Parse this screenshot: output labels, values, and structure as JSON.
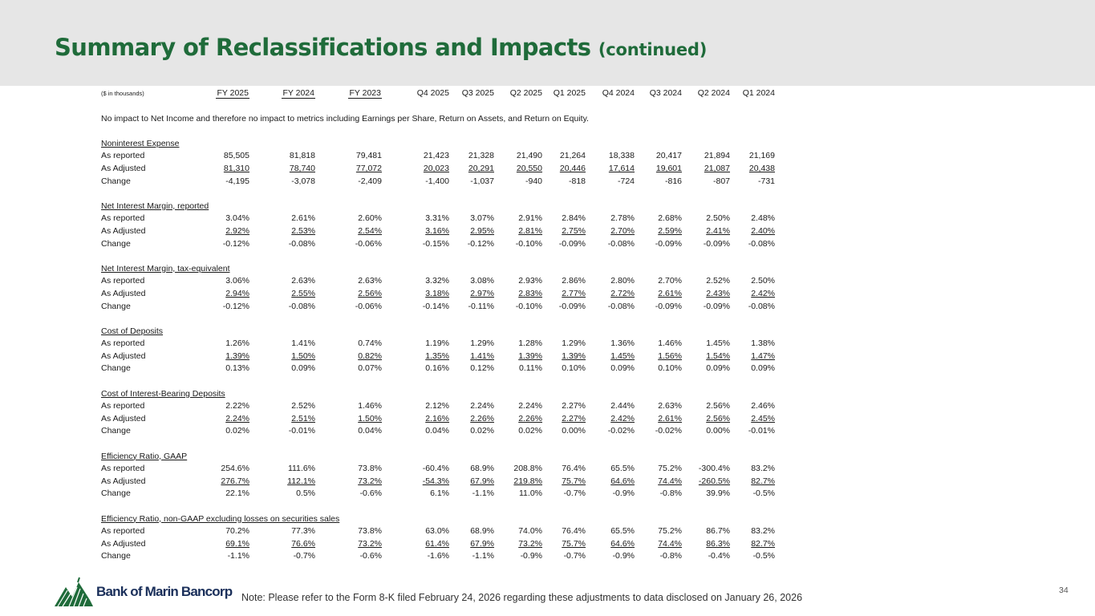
{
  "header": {
    "title": "Summary of Reclassifications and Impacts",
    "title_suffix": "(continued)"
  },
  "table": {
    "units_label": "($ in thousands)",
    "columns": [
      "FY 2025",
      "FY 2024",
      "FY 2023",
      "Q4 2025",
      "Q3 2025",
      "Q2 2025",
      "Q1 2025",
      "Q4 2024",
      "Q3 2024",
      "Q2 2024",
      "Q1 2024"
    ],
    "note": "No impact to Net Income and therefore no impact to metrics including Earnings per Share, Return on Assets, and Return on Equity.",
    "sections": [
      {
        "title": "Noninterest Expense",
        "rows": [
          {
            "label": "As reported",
            "values": [
              "85,505",
              "81,818",
              "79,481",
              "21,423",
              "21,328",
              "21,490",
              "21,264",
              "18,338",
              "20,417",
              "21,894",
              "21,169"
            ]
          },
          {
            "label": "As Adjusted",
            "values": [
              "81,310",
              "78,740",
              "77,072",
              "20,023",
              "20,291",
              "20,550",
              "20,446",
              "17,614",
              "19,601",
              "21,087",
              "20,438"
            ]
          },
          {
            "label": "Change",
            "values": [
              "-4,195",
              "-3,078",
              "-2,409",
              "-1,400",
              "-1,037",
              "-940",
              "-818",
              "-724",
              "-816",
              "-807",
              "-731"
            ]
          }
        ]
      },
      {
        "title": "Net Interest Margin, reported",
        "rows": [
          {
            "label": "As reported",
            "values": [
              "3.04%",
              "2.61%",
              "2.60%",
              "3.31%",
              "3.07%",
              "2.91%",
              "2.84%",
              "2.78%",
              "2.68%",
              "2.50%",
              "2.48%"
            ]
          },
          {
            "label": "As Adjusted",
            "values": [
              "2.92%",
              "2.53%",
              "2.54%",
              "3.16%",
              "2.95%",
              "2.81%",
              "2.75%",
              "2.70%",
              "2.59%",
              "2.41%",
              "2.40%"
            ]
          },
          {
            "label": "Change",
            "values": [
              "-0.12%",
              "-0.08%",
              "-0.06%",
              "-0.15%",
              "-0.12%",
              "-0.10%",
              "-0.09%",
              "-0.08%",
              "-0.09%",
              "-0.09%",
              "-0.08%"
            ]
          }
        ]
      },
      {
        "title": "Net Interest Margin, tax-equivalent",
        "rows": [
          {
            "label": "As reported",
            "values": [
              "3.06%",
              "2.63%",
              "2.63%",
              "3.32%",
              "3.08%",
              "2.93%",
              "2.86%",
              "2.80%",
              "2.70%",
              "2.52%",
              "2.50%"
            ]
          },
          {
            "label": "As Adjusted",
            "values": [
              "2.94%",
              "2.55%",
              "2.56%",
              "3.18%",
              "2.97%",
              "2.83%",
              "2.77%",
              "2.72%",
              "2.61%",
              "2.43%",
              "2.42%"
            ]
          },
          {
            "label": "Change",
            "values": [
              "-0.12%",
              "-0.08%",
              "-0.06%",
              "-0.14%",
              "-0.11%",
              "-0.10%",
              "-0.09%",
              "-0.08%",
              "-0.09%",
              "-0.09%",
              "-0.08%"
            ]
          }
        ]
      },
      {
        "title": "Cost of Deposits",
        "rows": [
          {
            "label": "As reported",
            "values": [
              "1.26%",
              "1.41%",
              "0.74%",
              "1.19%",
              "1.29%",
              "1.28%",
              "1.29%",
              "1.36%",
              "1.46%",
              "1.45%",
              "1.38%"
            ]
          },
          {
            "label": "As Adjusted",
            "values": [
              "1.39%",
              "1.50%",
              "0.82%",
              "1.35%",
              "1.41%",
              "1.39%",
              "1.39%",
              "1.45%",
              "1.56%",
              "1.54%",
              "1.47%"
            ]
          },
          {
            "label": "Change",
            "values": [
              "0.13%",
              "0.09%",
              "0.07%",
              "0.16%",
              "0.12%",
              "0.11%",
              "0.10%",
              "0.09%",
              "0.10%",
              "0.09%",
              "0.09%"
            ]
          }
        ]
      },
      {
        "title": "Cost of Interest-Bearing Deposits",
        "rows": [
          {
            "label": "As reported",
            "values": [
              "2.22%",
              "2.52%",
              "1.46%",
              "2.12%",
              "2.24%",
              "2.24%",
              "2.27%",
              "2.44%",
              "2.63%",
              "2.56%",
              "2.46%"
            ]
          },
          {
            "label": "As Adjusted",
            "values": [
              "2.24%",
              "2.51%",
              "1.50%",
              "2.16%",
              "2.26%",
              "2.26%",
              "2.27%",
              "2.42%",
              "2.61%",
              "2.56%",
              "2.45%"
            ]
          },
          {
            "label": "Change",
            "values": [
              "0.02%",
              "-0.01%",
              "0.04%",
              "0.04%",
              "0.02%",
              "0.02%",
              "0.00%",
              "-0.02%",
              "-0.02%",
              "0.00%",
              "-0.01%"
            ]
          }
        ]
      },
      {
        "title": "Efficiency Ratio, GAAP",
        "rows": [
          {
            "label": "As reported",
            "values": [
              "254.6%",
              "111.6%",
              "73.8%",
              "-60.4%",
              "68.9%",
              "208.8%",
              "76.4%",
              "65.5%",
              "75.2%",
              "-300.4%",
              "83.2%"
            ]
          },
          {
            "label": "As Adjusted",
            "values": [
              "276.7%",
              "112.1%",
              "73.2%",
              "-54.3%",
              "67.9%",
              "219.8%",
              "75.7%",
              "64.6%",
              "74.4%",
              "-260.5%",
              "82.7%"
            ]
          },
          {
            "label": "Change",
            "values": [
              "22.1%",
              "0.5%",
              "-0.6%",
              "6.1%",
              "-1.1%",
              "11.0%",
              "-0.7%",
              "-0.9%",
              "-0.8%",
              "39.9%",
              "-0.5%"
            ]
          }
        ]
      },
      {
        "title": "Efficiency Ratio, non-GAAP excluding losses on securities sales",
        "rows": [
          {
            "label": "As reported",
            "values": [
              "70.2%",
              "77.3%",
              "73.8%",
              "63.0%",
              "68.9%",
              "74.0%",
              "76.4%",
              "65.5%",
              "75.2%",
              "86.7%",
              "83.2%"
            ]
          },
          {
            "label": "As Adjusted",
            "values": [
              "69.1%",
              "76.6%",
              "73.2%",
              "61.4%",
              "67.9%",
              "73.2%",
              "75.7%",
              "64.6%",
              "74.4%",
              "86.3%",
              "82.7%"
            ]
          },
          {
            "label": "Change",
            "values": [
              "-1.1%",
              "-0.7%",
              "-0.6%",
              "-1.6%",
              "-1.1%",
              "-0.9%",
              "-0.7%",
              "-0.9%",
              "-0.8%",
              "-0.4%",
              "-0.5%"
            ]
          }
        ]
      }
    ]
  },
  "footer": {
    "logo_text": "Bank of Marin Bancorp",
    "note": "Note: Please refer to the Form 8-K filed February 24, 2026 regarding these adjustments to data disclosed on January 26, 2026",
    "page_number": "34"
  },
  "colors": {
    "title_green": "#1f6b3a",
    "header_bg": "#e6e6e6",
    "logo_green": "#1f6b3a",
    "logo_navy": "#1a2f5a"
  }
}
